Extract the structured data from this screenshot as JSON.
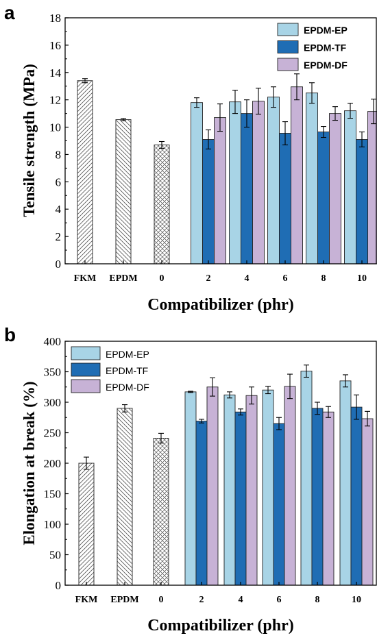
{
  "chart_data": [
    {
      "panel_label": "a",
      "type": "bar",
      "xlabel": "Compatibilizer (phr)",
      "ylabel": "Tensile strength (MPa)",
      "ylim": [
        0,
        18
      ],
      "yticks": [
        0,
        2,
        4,
        6,
        8,
        10,
        12,
        14,
        16,
        18
      ],
      "legend_position": "top-right",
      "controls": [
        {
          "category": "FKM",
          "value": 13.4,
          "error": 0.15,
          "hatch": "diagonal"
        },
        {
          "category": "EPDM",
          "value": 10.55,
          "error": 0.08,
          "hatch": "back-diagonal"
        },
        {
          "category": "0",
          "value": 8.7,
          "error": 0.25,
          "hatch": "cross"
        }
      ],
      "categories": [
        "2",
        "4",
        "6",
        "8",
        "10"
      ],
      "series": [
        {
          "name": "EPDM-EP",
          "color": "#a8d4e6",
          "values": [
            11.8,
            11.85,
            12.2,
            12.5,
            11.2
          ],
          "errors": [
            0.35,
            0.85,
            0.75,
            0.75,
            0.55
          ]
        },
        {
          "name": "EPDM-TF",
          "color": "#1f6db4",
          "values": [
            9.1,
            11.0,
            9.55,
            9.65,
            9.1
          ],
          "errors": [
            0.7,
            1.0,
            0.85,
            0.4,
            0.55
          ]
        },
        {
          "name": "EPDM-DF",
          "color": "#c7b2d6",
          "values": [
            10.7,
            11.9,
            12.95,
            11.0,
            11.15
          ],
          "errors": [
            1.0,
            0.95,
            0.95,
            0.5,
            0.9
          ]
        }
      ]
    },
    {
      "panel_label": "b",
      "type": "bar",
      "xlabel": "Compatibilizer (phr)",
      "ylabel": "Elongation at break (%)",
      "ylim": [
        0,
        400
      ],
      "yticks": [
        0,
        50,
        100,
        150,
        200,
        250,
        300,
        350,
        400
      ],
      "legend_position": "top-left",
      "controls": [
        {
          "category": "FKM",
          "value": 200,
          "error": 10,
          "hatch": "diagonal"
        },
        {
          "category": "EPDM",
          "value": 290,
          "error": 6,
          "hatch": "back-diagonal"
        },
        {
          "category": "0",
          "value": 241,
          "error": 8,
          "hatch": "cross"
        }
      ],
      "categories": [
        "2",
        "4",
        "6",
        "8",
        "10"
      ],
      "series": [
        {
          "name": "EPDM-EP",
          "color": "#a8d4e6",
          "values": [
            317,
            312,
            320,
            351,
            335
          ],
          "errors": [
            1,
            5,
            6,
            10,
            10
          ]
        },
        {
          "name": "EPDM-TF",
          "color": "#1f6db4",
          "values": [
            269,
            284,
            265,
            290,
            292
          ],
          "errors": [
            3,
            5,
            10,
            10,
            20
          ]
        },
        {
          "name": "EPDM-DF",
          "color": "#c7b2d6",
          "values": [
            325,
            311,
            326,
            284,
            273
          ],
          "errors": [
            15,
            14,
            20,
            9,
            12
          ]
        }
      ]
    }
  ]
}
